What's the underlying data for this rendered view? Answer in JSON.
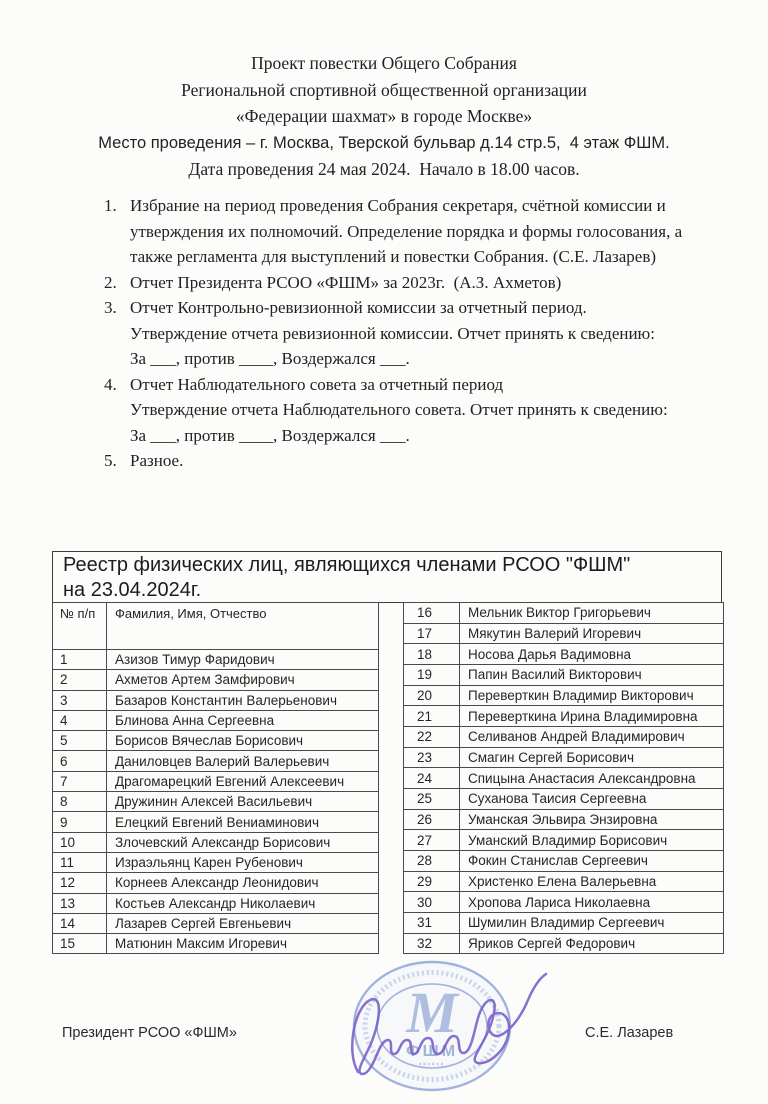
{
  "header": {
    "lines": [
      "Проект повестки Общего Собрания",
      "Региональной спортивной общественной организации",
      "«Федерации шахмат» в городе Москве»",
      "Место проведения – г. Москва, Тверской бульвар д.14 стр.5,  4 этаж ФШМ.",
      "Дата проведения 24 мая 2024.  Начало в 18.00 часов."
    ]
  },
  "agenda": {
    "items": [
      {
        "num": "1.",
        "lines": [
          "Избрание на период проведения Собрания секретаря, счётной комиссии и",
          "утверждения их полномочий. Определение порядка и формы голосования, а",
          "также регламента для выступлений и повестки Собрания. (С.Е. Лазарев)"
        ]
      },
      {
        "num": "2.",
        "lines": [
          "Отчет Президента РСОО «ФШМ» за 2023г.  (А.З. Ахметов)"
        ]
      },
      {
        "num": "3.",
        "lines": [
          "Отчет Контрольно-ревизионной комиссии за отчетный период.",
          "Утверждение отчета ревизионной комиссии. Отчет принять к сведению:",
          "За ___, против ____, Воздержался ___."
        ]
      },
      {
        "num": "4.",
        "lines": [
          "Отчет Наблюдательного совета за отчетный период",
          "Утверждение отчета Наблюдательного совета. Отчет принять к сведению:",
          "За ___, против ____, Воздержался ___."
        ]
      },
      {
        "num": "5.",
        "lines": [
          "Разное."
        ]
      }
    ]
  },
  "registry": {
    "title_line1": "Реестр физических лиц, являющихся членами РСОО \"ФШМ\"",
    "title_line2": "на 23.04.2024г.",
    "columns": {
      "num": "№ п/п",
      "name": "Фамилия, Имя, Отчество"
    },
    "members_left": [
      {
        "num": "1",
        "name": "Азизов Тимур Фаридович"
      },
      {
        "num": "2",
        "name": "Ахметов Артем Замфирович"
      },
      {
        "num": "3",
        "name": "Базаров Константин Валерьенович"
      },
      {
        "num": "4",
        "name": "Блинова Анна Сергеевна"
      },
      {
        "num": "5",
        "name": "Борисов Вячеслав Борисович"
      },
      {
        "num": "6",
        "name": "Даниловцев Валерий Валерьевич"
      },
      {
        "num": "7",
        "name": "Драгомарецкий Евгений Алексеевич"
      },
      {
        "num": "8",
        "name": "Дружинин Алексей Васильевич"
      },
      {
        "num": "9",
        "name": "Елецкий Евгений Вениаминович"
      },
      {
        "num": "10",
        "name": "Злочевский Александр Борисович"
      },
      {
        "num": "11",
        "name": "Израэльянц Карен Рубенович"
      },
      {
        "num": "12",
        "name": "Корнеев Александр Леонидович"
      },
      {
        "num": "13",
        "name": "Костьев Александр Николаевич"
      },
      {
        "num": "14",
        "name": "Лазарев Сергей Евгеньевич"
      },
      {
        "num": "15",
        "name": "Матюнин Максим Игоревич"
      }
    ],
    "members_right": [
      {
        "num": "16",
        "name": "Мельник Виктор Григорьевич"
      },
      {
        "num": "17",
        "name": "Мякутин Валерий Игоревич"
      },
      {
        "num": "18",
        "name": "Носова Дарья Вадимовна"
      },
      {
        "num": "19",
        "name": "Папин Василий Викторович"
      },
      {
        "num": "20",
        "name": "Переверткин Владимир Викторович"
      },
      {
        "num": "21",
        "name": "Переверткина Ирина Владимировна"
      },
      {
        "num": "22",
        "name": "Селиванов Андрей Владимирович"
      },
      {
        "num": "23",
        "name": "Смагин Сергей Борисович"
      },
      {
        "num": "24",
        "name": "Спицына Анастасия Александровна"
      },
      {
        "num": "25",
        "name": "Суханова Таисия Сергеевна"
      },
      {
        "num": "26",
        "name": "Уманская Эльвира Энзировна"
      },
      {
        "num": "27",
        "name": "Уманский Владимир Борисович"
      },
      {
        "num": "28",
        "name": "Фокин Станислав Сергеевич"
      },
      {
        "num": "29",
        "name": "Христенко Елена Валерьевна"
      },
      {
        "num": "30",
        "name": "Хропова Лариса Николаевна"
      },
      {
        "num": "31",
        "name": "Шумилин Владимир Сергеевич"
      },
      {
        "num": "32",
        "name": "Яриков Сергей Федорович"
      }
    ]
  },
  "footer": {
    "left_title": "Президент РСОО «ФШМ»",
    "right_name": "С.Е. Лазарев"
  },
  "stamp": {
    "center_text_big": "М",
    "center_text": "ФШМ",
    "stamp_color": "#8ba1d6",
    "signature_color": "#7a62c6"
  }
}
